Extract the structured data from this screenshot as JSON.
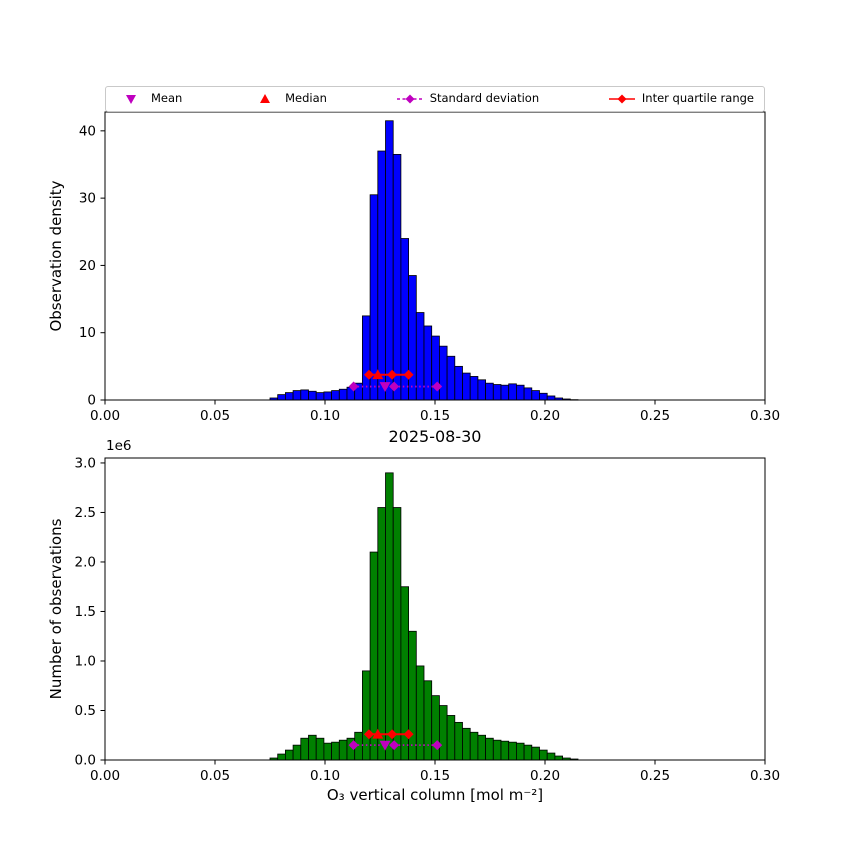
{
  "figure": {
    "background": "#ffffff"
  },
  "style": {
    "magenta": "#bf00bf",
    "red": "#ff0000",
    "axis_color": "#000000",
    "bar_edge": "#000000"
  },
  "legend": {
    "items": [
      {
        "label": "Mean",
        "marker": "triangle-down",
        "line": "none",
        "color": "#bf00bf"
      },
      {
        "label": "Median",
        "marker": "triangle-up",
        "line": "none",
        "color": "#ff0000"
      },
      {
        "label": "Standard deviation",
        "marker": "diamond",
        "line": "dashed",
        "color": "#bf00bf"
      },
      {
        "label": "Inter quartile range",
        "marker": "diamond",
        "line": "solid",
        "color": "#ff0000"
      }
    ]
  },
  "chart_data": [
    {
      "type": "bar",
      "name": "observation-density-histogram",
      "bar_color": "#0000ff",
      "edge_color": "#000000",
      "bin_start": 0.075,
      "bin_width": 0.0035,
      "values": [
        0.3,
        0.8,
        1.1,
        1.4,
        1.5,
        1.3,
        1.1,
        1.2,
        1.4,
        1.6,
        1.9,
        2.5,
        12.5,
        30.5,
        37.0,
        41.5,
        36.5,
        24.0,
        18.5,
        13.0,
        11.0,
        9.5,
        8.0,
        6.5,
        5.0,
        4.0,
        3.5,
        3.0,
        2.5,
        2.3,
        2.2,
        2.4,
        2.2,
        1.8,
        1.4,
        1.0,
        0.6,
        0.3,
        0.15,
        0.05
      ],
      "ylabel": "Observation density",
      "xlim": [
        0.0,
        0.3
      ],
      "ylim": [
        0,
        42.8
      ],
      "xtick_values": [
        0,
        0.05,
        0.1,
        0.15,
        0.2,
        0.25,
        0.3
      ],
      "xticks": [
        "0.00",
        "0.05",
        "0.10",
        "0.15",
        "0.20",
        "0.25",
        "0.30"
      ],
      "ytick_values": [
        0,
        10,
        20,
        30,
        40
      ],
      "yticks": [
        "0",
        "10",
        "20",
        "30",
        "40"
      ],
      "grid": false,
      "stats": {
        "mean": {
          "x": 0.1273,
          "y": 2.0
        },
        "median": {
          "x": 0.124,
          "y": 3.75
        },
        "std": {
          "x_center": 0.1314,
          "x_min": 0.113,
          "x_max": 0.151,
          "y": 2.0
        },
        "iqr": {
          "x_center": 0.1305,
          "x_min": 0.12,
          "x_max": 0.138,
          "y": 3.75
        }
      }
    },
    {
      "type": "bar",
      "name": "observation-count-histogram",
      "title": "2025-08-30",
      "xlabel": "O₃ vertical column [mol m⁻²]",
      "bar_color": "#008000",
      "edge_color": "#000000",
      "bin_start": 0.075,
      "bin_width": 0.0035,
      "values": [
        0.02,
        0.06,
        0.1,
        0.15,
        0.22,
        0.25,
        0.22,
        0.17,
        0.18,
        0.2,
        0.22,
        0.28,
        0.9,
        2.1,
        2.55,
        2.9,
        2.55,
        1.75,
        1.3,
        0.95,
        0.8,
        0.65,
        0.55,
        0.45,
        0.38,
        0.32,
        0.28,
        0.25,
        0.22,
        0.2,
        0.19,
        0.18,
        0.17,
        0.15,
        0.13,
        0.1,
        0.07,
        0.04,
        0.02,
        0.01
      ],
      "value_unit_multiplier": "1e6",
      "offset_text": "1e6",
      "ylabel": "Number of observations",
      "xlim": [
        0.0,
        0.3
      ],
      "ylim": [
        0,
        3.05
      ],
      "xtick_values": [
        0,
        0.05,
        0.1,
        0.15,
        0.2,
        0.25,
        0.3
      ],
      "xticks": [
        "0.00",
        "0.05",
        "0.10",
        "0.15",
        "0.20",
        "0.25",
        "0.30"
      ],
      "ytick_values": [
        0,
        0.5,
        1.0,
        1.5,
        2.0,
        2.5,
        3.0
      ],
      "yticks": [
        "0.0",
        "0.5",
        "1.0",
        "1.5",
        "2.0",
        "2.5",
        "3.0"
      ],
      "grid": false,
      "stats": {
        "mean": {
          "x": 0.1273,
          "y": 0.15
        },
        "median": {
          "x": 0.124,
          "y": 0.26
        },
        "std": {
          "x_center": 0.1314,
          "x_min": 0.113,
          "x_max": 0.151,
          "y": 0.15
        },
        "iqr": {
          "x_center": 0.1305,
          "x_min": 0.12,
          "x_max": 0.138,
          "y": 0.26
        }
      }
    }
  ]
}
